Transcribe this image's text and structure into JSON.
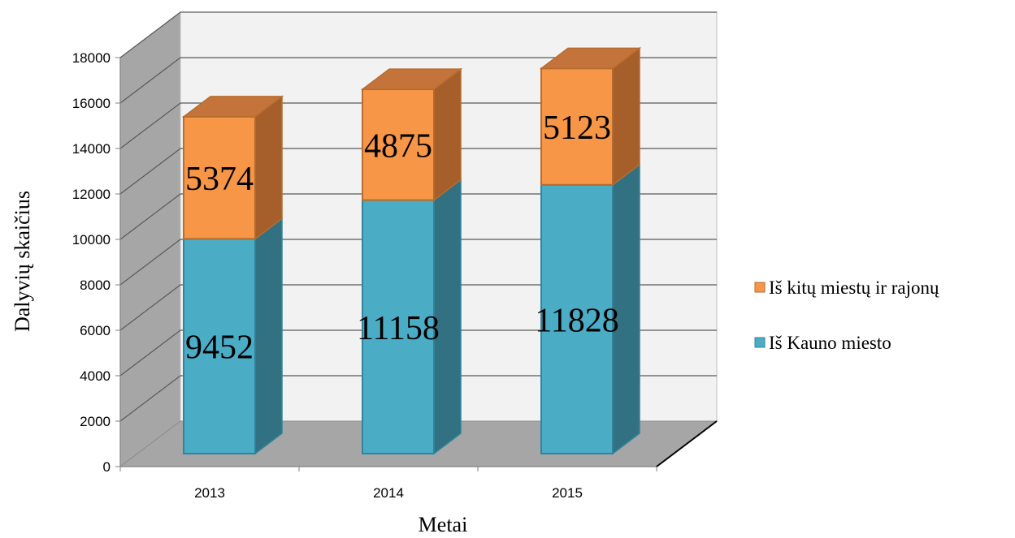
{
  "chart_data": {
    "type": "bar",
    "stacked": true,
    "three_d": true,
    "categories": [
      "2013",
      "2014",
      "2015"
    ],
    "series": [
      {
        "name": "Iš Kauno miesto",
        "values": [
          9452,
          11158,
          11828
        ],
        "color": "#4bacc6"
      },
      {
        "name": "Iš kitų miestų ir rajonų",
        "values": [
          5374,
          4875,
          5123
        ],
        "color": "#f79646"
      }
    ],
    "xlabel": "Metai",
    "ylabel": "Dalyvių skaičius",
    "ylim": [
      0,
      18000
    ],
    "yticks": [
      "0",
      "2000",
      "4000",
      "6000",
      "8000",
      "10000",
      "12000",
      "14000",
      "16000",
      "18000"
    ],
    "grid": true,
    "legend_position": "right"
  }
}
